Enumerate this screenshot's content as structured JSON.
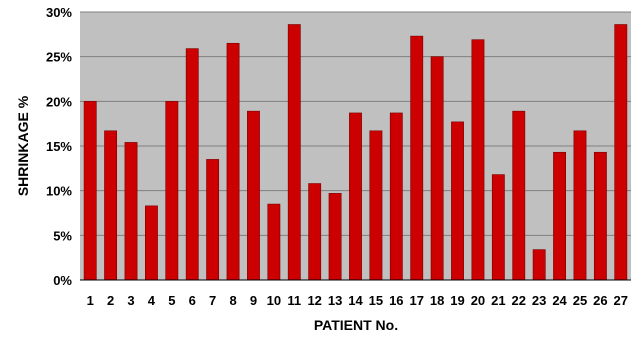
{
  "chart_data": {
    "type": "bar",
    "title": "",
    "xlabel": "PATIENT No.",
    "ylabel": "SHRINKAGE %",
    "ylim": [
      0,
      30
    ],
    "y_ticks": [
      0,
      5,
      10,
      15,
      20,
      25,
      30
    ],
    "y_tick_suffix": "%",
    "grid": true,
    "legend": "none",
    "colors": {
      "bar": "#cc0000",
      "plot_bg": "#c0c0c0",
      "grid": "#808080"
    },
    "categories": [
      "1",
      "2",
      "3",
      "4",
      "5",
      "6",
      "7",
      "8",
      "9",
      "10",
      "11",
      "12",
      "13",
      "14",
      "15",
      "16",
      "17",
      "18",
      "19",
      "20",
      "21",
      "22",
      "23",
      "24",
      "25",
      "26",
      "27"
    ],
    "values": [
      20,
      16.7,
      15.4,
      8.3,
      20,
      25.9,
      13.5,
      26.5,
      18.9,
      8.5,
      28.6,
      10.8,
      9.7,
      18.7,
      16.7,
      18.7,
      27.3,
      25,
      17.7,
      26.9,
      11.8,
      18.9,
      3.4,
      14.3,
      16.7,
      14.3,
      28.6
    ]
  }
}
